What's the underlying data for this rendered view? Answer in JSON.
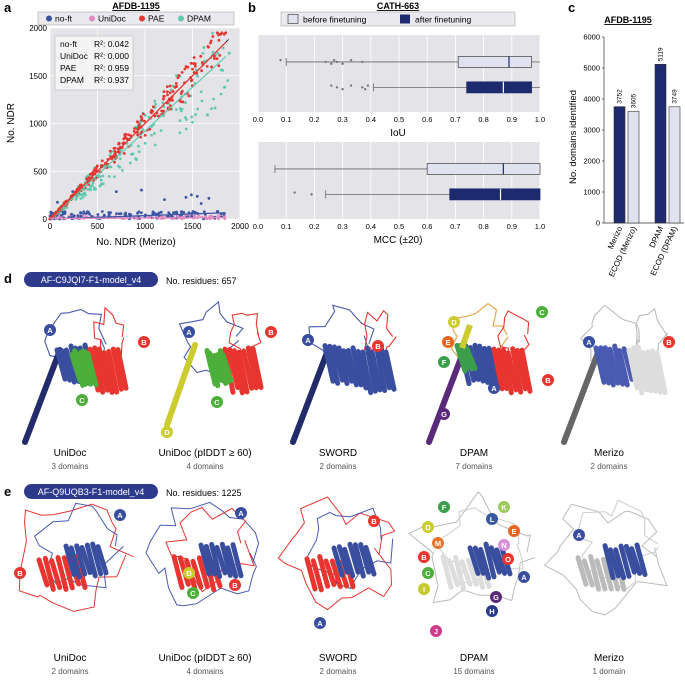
{
  "panels": {
    "a": "a",
    "b": "b",
    "c": "c",
    "d": "d",
    "e": "e"
  },
  "chart_data": [
    {
      "type": "scatter",
      "title": "AFDB-1195",
      "xlabel": "No. NDR (Merizo)",
      "ylabel": "No. NDR",
      "xlim": [
        0,
        2000
      ],
      "ylim": [
        0,
        2000
      ],
      "xticks": [
        "0",
        "500",
        "1000",
        "1500",
        "2000"
      ],
      "yticks": [
        "0",
        "500",
        "1000",
        "1500",
        "2000"
      ],
      "legend": [
        {
          "name": "no-ft",
          "color": "#3a55a4"
        },
        {
          "name": "UniDoc",
          "color": "#e08ac0"
        },
        {
          "name": "PAE",
          "color": "#e8352f"
        },
        {
          "name": "DPAM",
          "color": "#5fc9b0"
        }
      ],
      "r2": [
        {
          "name": "no-ft",
          "value": "R²: 0.042"
        },
        {
          "name": "UniDoc",
          "value": "R²: 0.000"
        },
        {
          "name": "PAE",
          "value": "R²: 0.959"
        },
        {
          "name": "DPAM",
          "value": "R²: 0.937"
        }
      ],
      "fit_slopes": {
        "no-ft": 0.03,
        "UniDoc": 0.005,
        "PAE": 1.0,
        "DPAM": 0.92
      }
    },
    {
      "type": "box",
      "title": "CATH-663",
      "legend": [
        "before finetuning",
        "after finetuning"
      ],
      "colors": {
        "before": "#e1e2f0",
        "after": "#1e2a6e"
      },
      "plots": [
        {
          "xlabel": "IoU",
          "xticks": [
            "0.0",
            "0.1",
            "0.2",
            "0.3",
            "0.4",
            "0.5",
            "0.6",
            "0.7",
            "0.8",
            "0.9",
            "1.0"
          ],
          "before": {
            "whisker_low": 0.1,
            "q1": 0.71,
            "median": 0.89,
            "q3": 0.97,
            "whisker_high": 1.0,
            "outliers": [
              0.08,
              0.24,
              0.26,
              0.27,
              0.28,
              0.3,
              0.33,
              0.37
            ]
          },
          "after": {
            "whisker_low": 0.41,
            "q1": 0.74,
            "median": 0.87,
            "q3": 0.97,
            "whisker_high": 1.0,
            "outliers": [
              0.26,
              0.28,
              0.3,
              0.33,
              0.37,
              0.38,
              0.39
            ]
          }
        },
        {
          "xlabel": "MCC (±20)",
          "xticks": [
            "0.0",
            "0.1",
            "0.2",
            "0.3",
            "0.4",
            "0.5",
            "0.6",
            "0.7",
            "0.8",
            "0.9",
            "1.0"
          ],
          "before": {
            "whisker_low": 0.06,
            "q1": 0.6,
            "median": 0.87,
            "q3": 1.0,
            "whisker_high": 1.0,
            "outliers": []
          },
          "after": {
            "whisker_low": 0.24,
            "q1": 0.68,
            "median": 0.86,
            "q3": 1.0,
            "whisker_high": 1.0,
            "outliers": [
              0.13,
              0.19
            ]
          }
        }
      ]
    },
    {
      "type": "bar",
      "title": "AFDB-1195",
      "ylabel": "No. domains identified",
      "ylim": [
        0,
        6000
      ],
      "yticks": [
        "0",
        "1000",
        "2000",
        "3000",
        "4000",
        "5000",
        "6000"
      ],
      "categories": [
        "Merizo",
        "ECOD (Merizo)",
        "DPAM",
        "ECOD (DPAM)"
      ],
      "values": [
        3752,
        3605,
        5119,
        3749
      ],
      "labels": [
        "3752",
        "3605",
        "5119",
        "3749"
      ],
      "colors": [
        "#1e2a6e",
        "#e1e2f0",
        "#1e2a6e",
        "#e1e2f0"
      ]
    }
  ],
  "row_d": {
    "protein_id": "AF-C9JQI7-F1-model_v4",
    "residues": "No. residues: 657",
    "methods": [
      {
        "name": "UniDoc",
        "count": "3 domains",
        "labels": [
          "A",
          "B",
          "C"
        ]
      },
      {
        "name": "UniDoc (pIDDT ≥ 60)",
        "count": "4 domains",
        "labels": [
          "A",
          "B",
          "C",
          "D"
        ]
      },
      {
        "name": "SWORD",
        "count": "2 domains",
        "labels": [
          "A",
          "B"
        ]
      },
      {
        "name": "DPAM",
        "count": "7 domains",
        "labels": [
          "A",
          "B",
          "C",
          "D",
          "E",
          "F",
          "G"
        ]
      },
      {
        "name": "Merizo",
        "count": "2 domains",
        "labels": [
          "A",
          "B"
        ]
      }
    ]
  },
  "row_e": {
    "protein_id": "AF-Q9UQB3-F1-model_v4",
    "residues": "No. residues: 1225",
    "methods": [
      {
        "name": "UniDoc",
        "count": "2 domains",
        "labels": [
          "A",
          "B"
        ]
      },
      {
        "name": "UniDoc (pIDDT ≥ 60)",
        "count": "4 domains",
        "labels": [
          "A",
          "B",
          "C",
          "D"
        ]
      },
      {
        "name": "SWORD",
        "count": "2 domains",
        "labels": [
          "A",
          "B"
        ]
      },
      {
        "name": "DPAM",
        "count": "15 domains",
        "labels": [
          "A",
          "B",
          "C",
          "D",
          "E",
          "F",
          "G",
          "H",
          "I",
          "J",
          "K",
          "L",
          "M",
          "N",
          "O"
        ]
      },
      {
        "name": "Merizo",
        "count": "1 domain",
        "labels": [
          "A"
        ]
      }
    ]
  },
  "domain_colors": {
    "A": "#3a4ea0",
    "B": "#e8352f",
    "C": "#4caf3a",
    "D": "#cccc30",
    "E": "#e8651f",
    "F": "#3a9e4a",
    "G": "#5a2a7a",
    "H": "#2a3a8a",
    "I": "#c8c830",
    "J": "#d03a8a",
    "K": "#9acc5a",
    "L": "#3a5aa0",
    "M": "#e8752f",
    "N": "#d890d8",
    "O": "#e8352f"
  }
}
